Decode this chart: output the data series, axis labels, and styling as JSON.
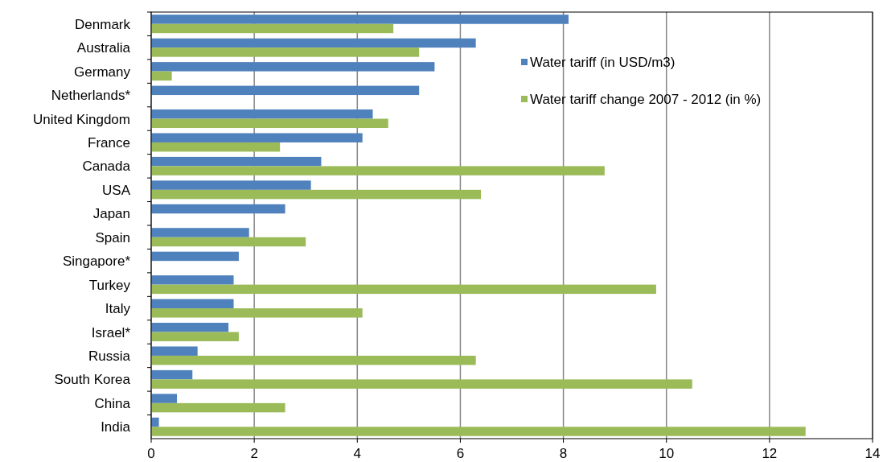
{
  "chart_data": {
    "type": "bar",
    "orientation": "horizontal",
    "categories": [
      "Denmark",
      "Australia",
      "Germany",
      "Netherlands*",
      "United Kingdom",
      "France",
      "Canada",
      "USA",
      "Japan",
      "Spain",
      "Singapore*",
      "Turkey",
      "Italy",
      "Israel*",
      "Russia",
      "South Korea",
      "China",
      "India"
    ],
    "series": [
      {
        "name": "Water tariff (in USD/m3)",
        "color": "#4f81bd",
        "values": [
          8.1,
          6.3,
          5.5,
          5.2,
          4.3,
          4.1,
          3.3,
          3.1,
          2.6,
          1.9,
          1.7,
          1.6,
          1.6,
          1.5,
          0.9,
          0.8,
          0.5,
          0.15
        ]
      },
      {
        "name": "Water tariff change 2007 - 2012 (in %)",
        "color": "#9bbb59",
        "values": [
          4.7,
          5.2,
          0.4,
          null,
          4.6,
          2.5,
          8.8,
          6.4,
          null,
          3.0,
          null,
          9.8,
          4.1,
          1.7,
          6.3,
          10.5,
          2.6,
          12.7
        ]
      }
    ],
    "xlim": [
      0,
      14
    ],
    "xticks": [
      0,
      2,
      4,
      6,
      8,
      10,
      12,
      14
    ],
    "grid": "x",
    "legend": "top right"
  }
}
